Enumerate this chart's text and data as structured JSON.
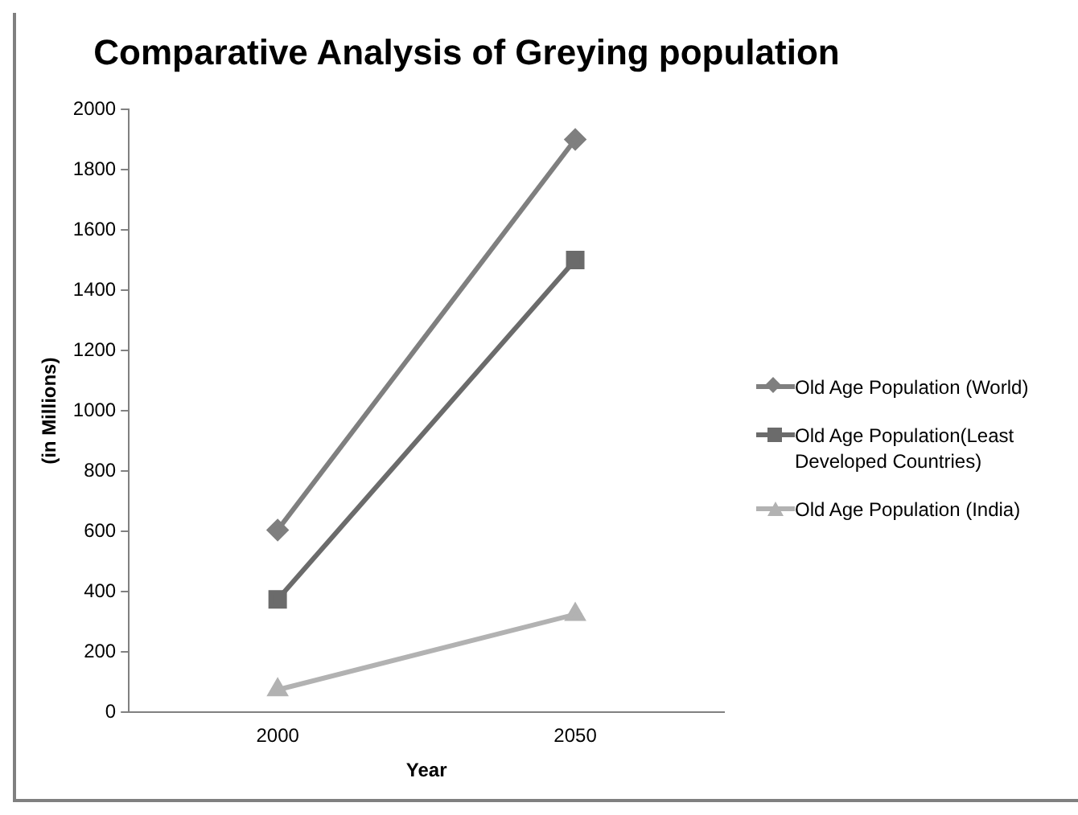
{
  "chart_data": {
    "type": "line",
    "title": "Comparative Analysis of Greying population",
    "xlabel": "Year",
    "ylabel": "(in Millions)",
    "categories": [
      "2000",
      "2050"
    ],
    "series": [
      {
        "name": "Old Age Population (World)",
        "color": "#7f7f7f",
        "marker": "diamond",
        "values": [
          605,
          1900
        ]
      },
      {
        "name": "Old Age Population(Least Developed Countries)",
        "color": "#6b6b6b",
        "marker": "square",
        "values": [
          375,
          1500
        ]
      },
      {
        "name": "Old Age Population (India)",
        "color": "#b2b2b2",
        "marker": "triangle",
        "values": [
          75,
          325
        ]
      }
    ],
    "ylim": [
      0,
      2000
    ],
    "yticks": [
      0,
      200,
      400,
      600,
      800,
      1000,
      1200,
      1400,
      1600,
      1800,
      2000
    ],
    "grid": false,
    "legend": "right"
  }
}
